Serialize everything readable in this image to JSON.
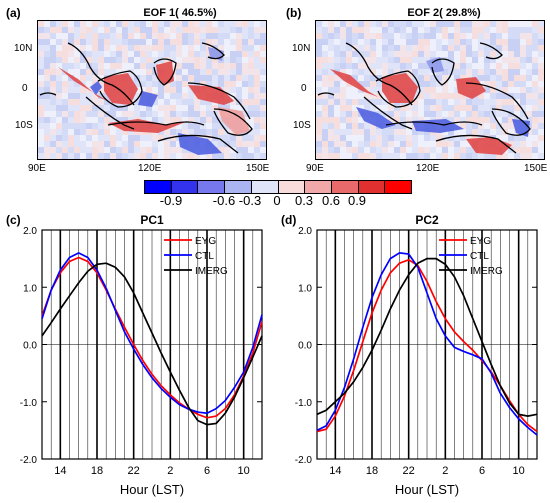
{
  "map_panels": [
    {
      "letter": "(a)",
      "title": "EOF 1( 46.5%)",
      "lat_ticks": [
        "10N",
        "0",
        "10S"
      ],
      "lon_ticks": [
        "90E",
        "120E",
        "150E"
      ]
    },
    {
      "letter": "(b)",
      "title": "EOF 2( 29.8%)",
      "lat_ticks": [
        "10N",
        "0",
        "10S"
      ],
      "lon_ticks": [
        "90E",
        "120E",
        "150E"
      ]
    }
  ],
  "colorbar": {
    "labels": [
      "-0.9",
      "-0.6",
      "-0.3",
      "0",
      "0.3",
      "0.6",
      "0.9"
    ],
    "colors": [
      "#0000ff",
      "#3333ee",
      "#7777ee",
      "#aab4f0",
      "#dfe4f8",
      "#f8dcdc",
      "#f0a8a8",
      "#e86a6a",
      "#e03030",
      "#ff0000"
    ]
  },
  "series_colors": {
    "EYG": "#ff0000",
    "CTL": "#0000ff",
    "IMERG": "#000000"
  },
  "chart_data": [
    {
      "type": "line",
      "letter": "(c)",
      "title": "PC1",
      "xlabel": "Hour (LST)",
      "ylabel": "",
      "x_ticks": [
        "14",
        "18",
        "22",
        "2",
        "6",
        "10"
      ],
      "y_ticks": [
        "2.0",
        "1.0",
        "0.0",
        "-1.0",
        "-2.0"
      ],
      "ylim": [
        -2.0,
        2.0
      ],
      "grid": "vertical lines each hour, bold every 4 hours",
      "legend_position": "top-right",
      "x_hours_lst": [
        12,
        13,
        14,
        15,
        16,
        17,
        18,
        19,
        20,
        21,
        22,
        23,
        0,
        1,
        2,
        3,
        4,
        5,
        6,
        7,
        8,
        9,
        10,
        11,
        12
      ],
      "series": [
        {
          "name": "EYG",
          "values": [
            0.5,
            0.95,
            1.25,
            1.45,
            1.52,
            1.45,
            1.25,
            0.95,
            0.62,
            0.3,
            0.0,
            -0.28,
            -0.52,
            -0.72,
            -0.88,
            -1.02,
            -1.13,
            -1.22,
            -1.28,
            -1.25,
            -1.12,
            -0.88,
            -0.55,
            -0.15,
            0.4
          ]
        },
        {
          "name": "CTL",
          "values": [
            0.45,
            0.95,
            1.3,
            1.52,
            1.6,
            1.52,
            1.3,
            0.98,
            0.6,
            0.22,
            -0.08,
            -0.35,
            -0.58,
            -0.77,
            -0.92,
            -1.05,
            -1.13,
            -1.18,
            -1.2,
            -1.12,
            -0.98,
            -0.75,
            -0.48,
            -0.05,
            0.52
          ]
        },
        {
          "name": "IMERG",
          "values": [
            0.15,
            0.38,
            0.62,
            0.85,
            1.08,
            1.28,
            1.4,
            1.42,
            1.35,
            1.18,
            0.9,
            0.55,
            0.2,
            -0.15,
            -0.48,
            -0.8,
            -1.1,
            -1.33,
            -1.4,
            -1.38,
            -1.2,
            -0.92,
            -0.58,
            -0.22,
            0.15
          ]
        }
      ]
    },
    {
      "type": "line",
      "letter": "(d)",
      "title": "PC2",
      "xlabel": "Hour (LST)",
      "ylabel": "",
      "x_ticks": [
        "14",
        "18",
        "22",
        "2",
        "6",
        "10"
      ],
      "y_ticks": [
        "2.0",
        "1.0",
        "0.0",
        "-1.0",
        "-2.0"
      ],
      "ylim": [
        -2.0,
        2.0
      ],
      "grid": "vertical lines each hour, bold every 4 hours",
      "legend_position": "top-right",
      "x_hours_lst": [
        12,
        13,
        14,
        15,
        16,
        17,
        18,
        19,
        20,
        21,
        22,
        23,
        0,
        1,
        2,
        3,
        4,
        5,
        6,
        7,
        8,
        9,
        10,
        11,
        12
      ],
      "series": [
        {
          "name": "EYG",
          "values": [
            -1.52,
            -1.48,
            -1.25,
            -0.9,
            -0.45,
            0.05,
            0.55,
            0.95,
            1.25,
            1.42,
            1.48,
            1.38,
            1.1,
            0.75,
            0.45,
            0.22,
            0.05,
            -0.1,
            -0.28,
            -0.48,
            -0.72,
            -0.98,
            -1.22,
            -1.4,
            -1.52
          ]
        },
        {
          "name": "CTL",
          "values": [
            -1.5,
            -1.42,
            -1.15,
            -0.75,
            -0.25,
            0.3,
            0.82,
            1.22,
            1.5,
            1.6,
            1.58,
            1.35,
            0.9,
            0.45,
            0.15,
            -0.05,
            -0.12,
            -0.18,
            -0.25,
            -0.5,
            -0.85,
            -1.1,
            -1.3,
            -1.45,
            -1.58
          ]
        },
        {
          "name": "IMERG",
          "values": [
            -1.22,
            -1.15,
            -1.0,
            -0.85,
            -0.65,
            -0.4,
            -0.1,
            0.25,
            0.62,
            0.95,
            1.22,
            1.42,
            1.5,
            1.5,
            1.4,
            1.18,
            0.85,
            0.45,
            0.05,
            -0.35,
            -0.72,
            -1.02,
            -1.22,
            -1.25,
            -1.22
          ]
        }
      ]
    }
  ]
}
